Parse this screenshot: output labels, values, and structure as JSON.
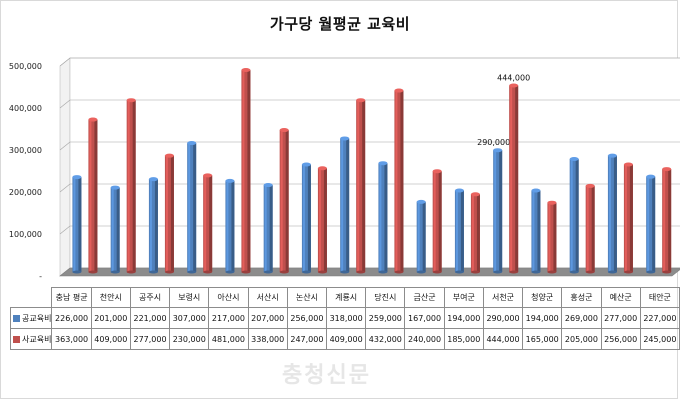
{
  "chart_data": {
    "type": "bar",
    "title": "가구당 월평균 교육비",
    "categories": [
      "충남 평균",
      "천안시",
      "공주시",
      "보령시",
      "아산시",
      "서산시",
      "논산시",
      "계룡시",
      "당진시",
      "금산군",
      "부여군",
      "서천군",
      "청양군",
      "홍성군",
      "예산군",
      "태안군"
    ],
    "series": [
      {
        "name": "공교육비",
        "color": "#4f81bd",
        "values": [
          226000,
          201000,
          221000,
          307000,
          217000,
          207000,
          256000,
          318000,
          259000,
          167000,
          194000,
          290000,
          194000,
          269000,
          277000,
          227000
        ],
        "display": [
          "226,000",
          "201,000",
          "221,000",
          "307,000",
          "217,000",
          "207,000",
          "256,000",
          "318,000",
          "259,000",
          "167,000",
          "194,000",
          "290,000",
          "194,000",
          "269,000",
          "277,000",
          "227,000"
        ]
      },
      {
        "name": "사교육비",
        "color": "#c0504d",
        "values": [
          363000,
          409000,
          277000,
          230000,
          481000,
          338000,
          247000,
          409000,
          432000,
          240000,
          185000,
          444000,
          165000,
          205000,
          256000,
          245000
        ],
        "display": [
          "363,000",
          "409,000",
          "277,000",
          "230,000",
          "481,000",
          "338,000",
          "247,000",
          "409,000",
          "432,000",
          "240,000",
          "185,000",
          "444,000",
          "165,000",
          "205,000",
          "256,000",
          "245,000"
        ]
      }
    ],
    "yticks": [
      "-",
      "100,000",
      "200,000",
      "300,000",
      "400,000",
      "500,000"
    ],
    "ylim": [
      0,
      500000
    ],
    "annotations": [
      {
        "category": "서천군",
        "series": "공교육비",
        "text": "290,000"
      },
      {
        "category": "서천군",
        "series": "사교육비",
        "text": "444,000"
      }
    ],
    "grid": true,
    "legend": "data-table"
  },
  "watermark": "충청신문"
}
